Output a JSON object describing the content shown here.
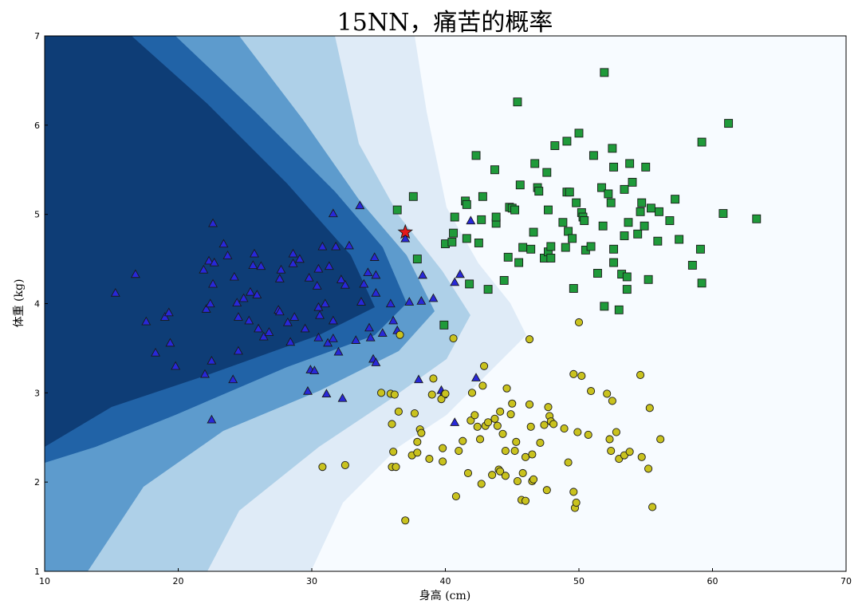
{
  "chart_data": {
    "type": "scatter",
    "title": "15NN，痛苦的概率",
    "xlabel": "身高 (cm)",
    "ylabel": "体重 (kg)",
    "xlim": [
      10,
      70
    ],
    "ylim": [
      1,
      7
    ],
    "x_ticks": [
      "10",
      "20",
      "30",
      "40",
      "50",
      "60",
      "70"
    ],
    "y_ticks": [
      "1",
      "2",
      "3",
      "4",
      "5",
      "6",
      "7"
    ],
    "grid": false,
    "legend": "none",
    "background": "decision-surface",
    "surface_colors": [
      "#f7fbff",
      "#c6dbef",
      "#6baed6",
      "#2171b5",
      "#08306b"
    ],
    "series": [
      {
        "marker": "triangle",
        "color": "#2828d8",
        "points": [
          [
            15.3,
            4.12
          ],
          [
            16.8,
            4.33
          ],
          [
            17.6,
            3.8
          ],
          [
            18.3,
            3.45
          ],
          [
            19.0,
            3.85
          ],
          [
            19.3,
            3.9
          ],
          [
            19.4,
            3.56
          ],
          [
            19.8,
            3.3
          ],
          [
            21.9,
            4.38
          ],
          [
            22.0,
            3.21
          ],
          [
            22.1,
            3.94
          ],
          [
            22.3,
            4.48
          ],
          [
            22.4,
            4.0
          ],
          [
            22.5,
            3.36
          ],
          [
            22.6,
            4.22
          ],
          [
            22.5,
            2.7
          ],
          [
            22.7,
            4.46
          ],
          [
            22.6,
            4.9
          ],
          [
            23.4,
            4.67
          ],
          [
            23.7,
            4.54
          ],
          [
            24.1,
            3.15
          ],
          [
            24.2,
            4.3
          ],
          [
            24.4,
            4.01
          ],
          [
            24.5,
            3.85
          ],
          [
            24.5,
            3.47
          ],
          [
            24.9,
            4.06
          ],
          [
            25.3,
            3.81
          ],
          [
            25.4,
            4.13
          ],
          [
            25.6,
            4.43
          ],
          [
            25.7,
            4.56
          ],
          [
            25.9,
            4.1
          ],
          [
            26.0,
            3.72
          ],
          [
            26.2,
            4.42
          ],
          [
            26.4,
            3.63
          ],
          [
            26.8,
            3.68
          ],
          [
            27.5,
            3.93
          ],
          [
            27.6,
            4.28
          ],
          [
            27.7,
            4.38
          ],
          [
            27.6,
            3.91
          ],
          [
            28.2,
            3.79
          ],
          [
            28.4,
            3.57
          ],
          [
            28.6,
            4.56
          ],
          [
            28.7,
            3.85
          ],
          [
            28.6,
            4.45
          ],
          [
            29.1,
            4.5
          ],
          [
            29.5,
            3.72
          ],
          [
            29.8,
            4.29
          ],
          [
            29.9,
            3.26
          ],
          [
            30.2,
            3.25
          ],
          [
            29.7,
            3.02
          ],
          [
            30.4,
            4.2
          ],
          [
            30.5,
            3.62
          ],
          [
            30.5,
            3.96
          ],
          [
            30.5,
            4.39
          ],
          [
            30.6,
            3.87
          ],
          [
            30.8,
            4.64
          ],
          [
            31.0,
            4.0
          ],
          [
            31.1,
            2.99
          ],
          [
            31.2,
            3.56
          ],
          [
            31.3,
            4.42
          ],
          [
            31.6,
            3.61
          ],
          [
            31.6,
            5.01
          ],
          [
            31.6,
            3.81
          ],
          [
            31.8,
            4.64
          ],
          [
            32.0,
            3.46
          ],
          [
            32.2,
            4.27
          ],
          [
            32.3,
            2.94
          ],
          [
            32.5,
            4.21
          ],
          [
            32.8,
            4.65
          ],
          [
            33.3,
            3.59
          ],
          [
            33.7,
            4.02
          ],
          [
            33.9,
            4.22
          ],
          [
            33.6,
            5.1
          ],
          [
            34.2,
            4.35
          ],
          [
            34.3,
            3.73
          ],
          [
            34.4,
            3.62
          ],
          [
            34.6,
            3.38
          ],
          [
            34.7,
            4.52
          ],
          [
            34.8,
            4.32
          ],
          [
            34.8,
            4.12
          ],
          [
            34.8,
            3.34
          ],
          [
            35.3,
            3.67
          ],
          [
            35.9,
            4.0
          ],
          [
            36.1,
            3.81
          ],
          [
            36.4,
            3.7
          ],
          [
            37.0,
            4.73
          ],
          [
            37.3,
            4.02
          ],
          [
            38.0,
            3.15
          ],
          [
            38.2,
            4.03
          ],
          [
            38.3,
            4.32
          ],
          [
            39.1,
            4.06
          ],
          [
            39.7,
            3.03
          ],
          [
            39.8,
            2.98
          ],
          [
            40.7,
            4.24
          ],
          [
            40.7,
            2.67
          ],
          [
            41.1,
            4.33
          ],
          [
            41.9,
            4.93
          ],
          [
            42.3,
            3.17
          ]
        ]
      },
      {
        "marker": "square",
        "color": "#1f9a3a",
        "points": [
          [
            36.4,
            5.05
          ],
          [
            37.6,
            5.2
          ],
          [
            37.9,
            4.5
          ],
          [
            39.9,
            3.76
          ],
          [
            40.0,
            4.67
          ],
          [
            40.5,
            4.69
          ],
          [
            40.6,
            4.79
          ],
          [
            40.7,
            4.97
          ],
          [
            41.5,
            5.15
          ],
          [
            41.6,
            4.73
          ],
          [
            41.6,
            5.11
          ],
          [
            41.8,
            4.22
          ],
          [
            42.3,
            5.66
          ],
          [
            42.5,
            4.68
          ],
          [
            42.7,
            4.94
          ],
          [
            42.8,
            5.2
          ],
          [
            43.2,
            4.16
          ],
          [
            43.7,
            5.5
          ],
          [
            43.8,
            4.9
          ],
          [
            43.8,
            4.97
          ],
          [
            44.4,
            4.26
          ],
          [
            44.7,
            4.52
          ],
          [
            44.8,
            5.08
          ],
          [
            45.0,
            5.07
          ],
          [
            45.2,
            5.05
          ],
          [
            45.4,
            6.26
          ],
          [
            45.5,
            4.46
          ],
          [
            45.6,
            5.33
          ],
          [
            45.8,
            4.63
          ],
          [
            46.4,
            4.61
          ],
          [
            46.6,
            4.8
          ],
          [
            46.7,
            5.57
          ],
          [
            46.9,
            5.3
          ],
          [
            47.0,
            5.26
          ],
          [
            47.4,
            4.51
          ],
          [
            47.6,
            5.47
          ],
          [
            47.7,
            4.58
          ],
          [
            47.7,
            5.05
          ],
          [
            47.9,
            4.51
          ],
          [
            47.9,
            4.64
          ],
          [
            48.2,
            5.77
          ],
          [
            48.8,
            4.91
          ],
          [
            49.0,
            4.63
          ],
          [
            49.1,
            5.82
          ],
          [
            49.1,
            5.25
          ],
          [
            49.2,
            4.81
          ],
          [
            49.3,
            5.25
          ],
          [
            49.5,
            4.73
          ],
          [
            49.6,
            4.17
          ],
          [
            49.8,
            5.13
          ],
          [
            50.0,
            5.91
          ],
          [
            50.2,
            5.02
          ],
          [
            50.3,
            4.97
          ],
          [
            50.4,
            4.93
          ],
          [
            50.5,
            4.6
          ],
          [
            50.9,
            4.64
          ],
          [
            51.1,
            5.66
          ],
          [
            51.4,
            4.34
          ],
          [
            51.7,
            5.3
          ],
          [
            51.8,
            4.87
          ],
          [
            51.9,
            3.97
          ],
          [
            51.9,
            6.59
          ],
          [
            52.2,
            5.23
          ],
          [
            52.4,
            5.13
          ],
          [
            52.5,
            5.74
          ],
          [
            52.6,
            4.46
          ],
          [
            52.6,
            4.61
          ],
          [
            52.6,
            5.53
          ],
          [
            53.0,
            3.93
          ],
          [
            53.2,
            4.33
          ],
          [
            53.4,
            5.28
          ],
          [
            53.4,
            4.76
          ],
          [
            53.6,
            4.3
          ],
          [
            53.6,
            4.16
          ],
          [
            53.7,
            4.91
          ],
          [
            53.8,
            5.57
          ],
          [
            54.0,
            5.36
          ],
          [
            54.4,
            4.78
          ],
          [
            54.6,
            5.03
          ],
          [
            54.7,
            5.13
          ],
          [
            54.9,
            4.87
          ],
          [
            55.0,
            5.53
          ],
          [
            55.2,
            4.27
          ],
          [
            55.4,
            5.07
          ],
          [
            55.9,
            4.7
          ],
          [
            56.0,
            5.03
          ],
          [
            56.8,
            4.93
          ],
          [
            57.2,
            5.17
          ],
          [
            57.5,
            4.72
          ],
          [
            58.5,
            4.43
          ],
          [
            59.1,
            4.61
          ],
          [
            59.2,
            5.81
          ],
          [
            59.2,
            4.23
          ],
          [
            60.8,
            5.01
          ],
          [
            61.2,
            6.02
          ],
          [
            63.3,
            4.95
          ]
        ]
      },
      {
        "marker": "circle",
        "color": "#c9c21e",
        "points": [
          [
            30.8,
            2.17
          ],
          [
            32.5,
            2.19
          ],
          [
            35.2,
            3.0
          ],
          [
            35.9,
            2.99
          ],
          [
            36.0,
            2.65
          ],
          [
            36.1,
            2.34
          ],
          [
            36.0,
            2.17
          ],
          [
            36.2,
            2.98
          ],
          [
            36.3,
            2.17
          ],
          [
            36.5,
            2.79
          ],
          [
            36.6,
            3.65
          ],
          [
            37.0,
            1.57
          ],
          [
            37.5,
            2.3
          ],
          [
            37.7,
            2.77
          ],
          [
            37.9,
            2.33
          ],
          [
            37.9,
            2.45
          ],
          [
            38.1,
            2.59
          ],
          [
            38.2,
            2.55
          ],
          [
            38.8,
            2.26
          ],
          [
            39.1,
            3.16
          ],
          [
            39.0,
            2.98
          ],
          [
            39.7,
            2.93
          ],
          [
            39.8,
            2.38
          ],
          [
            39.8,
            2.23
          ],
          [
            40.0,
            2.99
          ],
          [
            40.6,
            3.61
          ],
          [
            40.8,
            1.84
          ],
          [
            41.0,
            2.35
          ],
          [
            41.3,
            2.46
          ],
          [
            41.7,
            2.1
          ],
          [
            41.9,
            2.69
          ],
          [
            42.0,
            3.0
          ],
          [
            42.2,
            2.75
          ],
          [
            42.4,
            2.62
          ],
          [
            42.6,
            2.48
          ],
          [
            42.7,
            1.98
          ],
          [
            42.8,
            3.08
          ],
          [
            42.9,
            3.3
          ],
          [
            43.0,
            2.63
          ],
          [
            43.2,
            2.67
          ],
          [
            43.5,
            2.08
          ],
          [
            43.7,
            2.71
          ],
          [
            43.9,
            2.63
          ],
          [
            44.0,
            2.14
          ],
          [
            44.1,
            2.12
          ],
          [
            44.1,
            2.79
          ],
          [
            44.3,
            2.54
          ],
          [
            44.5,
            2.07
          ],
          [
            44.5,
            2.35
          ],
          [
            44.6,
            3.05
          ],
          [
            44.9,
            2.76
          ],
          [
            45.0,
            2.88
          ],
          [
            45.2,
            2.35
          ],
          [
            45.3,
            2.45
          ],
          [
            45.4,
            2.01
          ],
          [
            45.7,
            1.8
          ],
          [
            45.8,
            2.1
          ],
          [
            46.0,
            2.28
          ],
          [
            46.0,
            1.79
          ],
          [
            46.3,
            2.87
          ],
          [
            46.3,
            3.6
          ],
          [
            46.4,
            2.62
          ],
          [
            46.5,
            2.01
          ],
          [
            46.5,
            2.31
          ],
          [
            46.6,
            2.03
          ],
          [
            47.1,
            2.44
          ],
          [
            47.4,
            2.64
          ],
          [
            47.6,
            1.91
          ],
          [
            47.7,
            2.84
          ],
          [
            47.8,
            2.74
          ],
          [
            47.9,
            2.68
          ],
          [
            48.1,
            2.65
          ],
          [
            48.9,
            2.6
          ],
          [
            49.2,
            2.22
          ],
          [
            49.6,
            1.89
          ],
          [
            49.6,
            3.21
          ],
          [
            49.7,
            1.71
          ],
          [
            49.8,
            1.77
          ],
          [
            49.9,
            2.56
          ],
          [
            50.0,
            3.79
          ],
          [
            50.2,
            3.19
          ],
          [
            50.7,
            2.53
          ],
          [
            50.9,
            3.02
          ],
          [
            52.1,
            2.99
          ],
          [
            52.3,
            2.48
          ],
          [
            52.4,
            2.35
          ],
          [
            52.5,
            2.91
          ],
          [
            52.8,
            2.56
          ],
          [
            53.0,
            2.26
          ],
          [
            53.4,
            2.3
          ],
          [
            53.8,
            2.34
          ],
          [
            54.6,
            3.2
          ],
          [
            54.7,
            2.28
          ],
          [
            55.2,
            2.15
          ],
          [
            55.3,
            2.83
          ],
          [
            55.5,
            1.72
          ],
          [
            56.1,
            2.48
          ]
        ]
      },
      {
        "marker": "star",
        "color": "#e41a1c",
        "points": [
          [
            37.0,
            4.8
          ]
        ]
      }
    ]
  }
}
